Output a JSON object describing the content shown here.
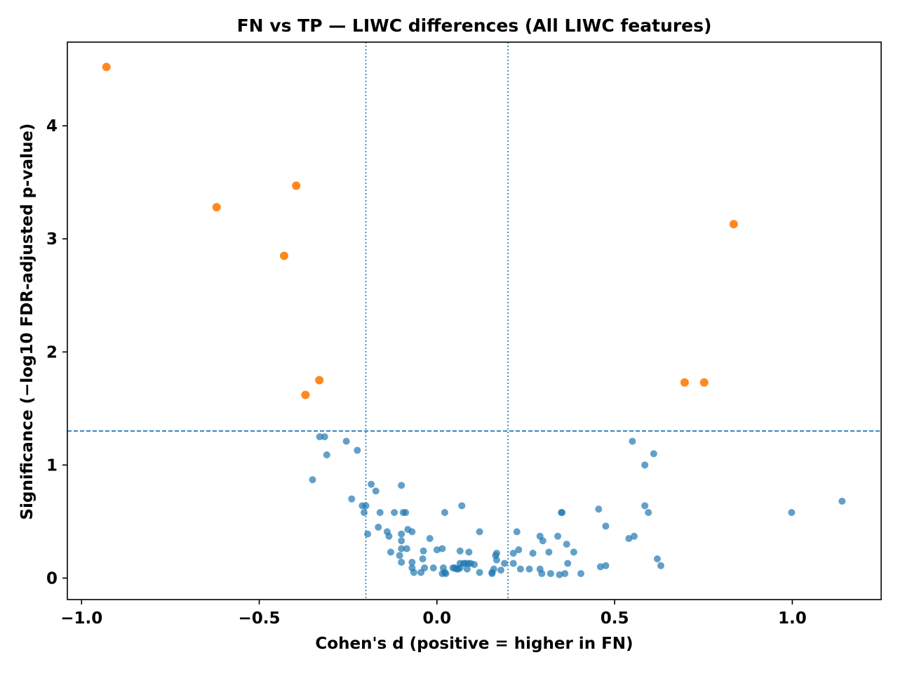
{
  "chart_data": {
    "type": "scatter",
    "title": "FN vs TP — LIWC differences (All LIWC features)",
    "xlabel": "Cohen's d (positive = higher in FN)",
    "ylabel": "Significance (−log10 FDR-adjusted p-value)",
    "xlim": [
      -1.04,
      1.25
    ],
    "ylim": [
      -0.19,
      4.74
    ],
    "xticks": [
      -1.0,
      -0.5,
      0.0,
      0.5,
      1.0
    ],
    "xtick_labels": [
      "−1.0",
      "−0.5",
      "0.0",
      "0.5",
      "1.0"
    ],
    "yticks": [
      0,
      1,
      2,
      3,
      4
    ],
    "ytick_labels": [
      "0",
      "1",
      "2",
      "3",
      "4"
    ],
    "grid": false,
    "reference_lines": {
      "horizontal_dashed_y": 1.301,
      "vertical_dotted_x": [
        -0.2,
        0.2
      ]
    },
    "colors": {
      "significant": "#ff7f0e",
      "not_significant": "#1f77b4",
      "reference_line": "#1f77b4"
    },
    "series": [
      {
        "points": [
          [
            -0.93,
            4.52
          ],
          [
            -0.62,
            3.28
          ],
          [
            -0.396,
            3.47
          ],
          [
            -0.43,
            2.85
          ],
          [
            -0.331,
            1.75
          ],
          [
            -0.37,
            1.62
          ],
          [
            0.835,
            3.13
          ],
          [
            0.697,
            1.73
          ],
          [
            0.752,
            1.73
          ]
        ]
      },
      {
        "points": [
          [
            -0.33,
            1.25
          ],
          [
            -0.316,
            1.25
          ],
          [
            -0.31,
            1.09
          ],
          [
            -0.35,
            0.87
          ],
          [
            -0.255,
            1.21
          ],
          [
            -0.224,
            1.13
          ],
          [
            -0.24,
            0.7
          ],
          [
            -0.21,
            0.64
          ],
          [
            -0.2,
            0.64
          ],
          [
            -0.205,
            0.58
          ],
          [
            -0.195,
            0.39
          ],
          [
            -0.185,
            0.83
          ],
          [
            -0.172,
            0.77
          ],
          [
            -0.16,
            0.58
          ],
          [
            -0.165,
            0.45
          ],
          [
            -0.14,
            0.41
          ],
          [
            -0.135,
            0.37
          ],
          [
            -0.13,
            0.23
          ],
          [
            -0.12,
            0.58
          ],
          [
            -0.1,
            0.82
          ],
          [
            -0.095,
            0.58
          ],
          [
            -0.088,
            0.58
          ],
          [
            -0.1,
            0.39
          ],
          [
            -0.1,
            0.33
          ],
          [
            -0.1,
            0.26
          ],
          [
            -0.105,
            0.2
          ],
          [
            -0.1,
            0.14
          ],
          [
            -0.082,
            0.43
          ],
          [
            -0.07,
            0.41
          ],
          [
            -0.085,
            0.26
          ],
          [
            -0.07,
            0.14
          ],
          [
            -0.07,
            0.09
          ],
          [
            -0.065,
            0.05
          ],
          [
            -0.045,
            0.05
          ],
          [
            -0.04,
            0.17
          ],
          [
            -0.038,
            0.24
          ],
          [
            -0.035,
            0.09
          ],
          [
            -0.02,
            0.35
          ],
          [
            -0.01,
            0.09
          ],
          [
            0.0,
            0.25
          ],
          [
            0.015,
            0.26
          ],
          [
            0.018,
            0.09
          ],
          [
            0.015,
            0.04
          ],
          [
            0.022,
            0.05
          ],
          [
            0.025,
            0.04
          ],
          [
            0.022,
            0.58
          ],
          [
            0.045,
            0.09
          ],
          [
            0.05,
            0.09
          ],
          [
            0.055,
            0.08
          ],
          [
            0.06,
            0.08
          ],
          [
            0.065,
            0.09
          ],
          [
            0.065,
            0.13
          ],
          [
            0.065,
            0.24
          ],
          [
            0.07,
            0.64
          ],
          [
            0.075,
            0.13
          ],
          [
            0.08,
            0.13
          ],
          [
            0.085,
            0.08
          ],
          [
            0.088,
            0.13
          ],
          [
            0.09,
            0.23
          ],
          [
            0.095,
            0.13
          ],
          [
            0.105,
            0.12
          ],
          [
            0.12,
            0.41
          ],
          [
            0.12,
            0.05
          ],
          [
            0.155,
            0.04
          ],
          [
            0.155,
            0.05
          ],
          [
            0.16,
            0.08
          ],
          [
            0.165,
            0.2
          ],
          [
            0.168,
            0.22
          ],
          [
            0.168,
            0.16
          ],
          [
            0.18,
            0.07
          ],
          [
            0.19,
            0.13
          ],
          [
            0.215,
            0.22
          ],
          [
            0.215,
            0.13
          ],
          [
            0.225,
            0.41
          ],
          [
            0.23,
            0.25
          ],
          [
            0.235,
            0.08
          ],
          [
            0.26,
            0.08
          ],
          [
            0.27,
            0.22
          ],
          [
            0.29,
            0.37
          ],
          [
            0.29,
            0.08
          ],
          [
            0.295,
            0.04
          ],
          [
            0.298,
            0.33
          ],
          [
            0.315,
            0.23
          ],
          [
            0.32,
            0.04
          ],
          [
            0.34,
            0.37
          ],
          [
            0.345,
            0.03
          ],
          [
            0.35,
            0.58
          ],
          [
            0.352,
            0.58
          ],
          [
            0.36,
            0.04
          ],
          [
            0.365,
            0.3
          ],
          [
            0.368,
            0.13
          ],
          [
            0.385,
            0.23
          ],
          [
            0.405,
            0.04
          ],
          [
            0.455,
            0.61
          ],
          [
            0.46,
            0.1
          ],
          [
            0.475,
            0.46
          ],
          [
            0.475,
            0.11
          ],
          [
            0.54,
            0.35
          ],
          [
            0.55,
            1.21
          ],
          [
            0.555,
            0.37
          ],
          [
            0.585,
            1.0
          ],
          [
            0.585,
            0.64
          ],
          [
            0.595,
            0.58
          ],
          [
            0.61,
            1.1
          ],
          [
            0.62,
            0.17
          ],
          [
            0.63,
            0.11
          ],
          [
            0.998,
            0.58
          ],
          [
            1.14,
            0.68
          ]
        ]
      }
    ]
  }
}
